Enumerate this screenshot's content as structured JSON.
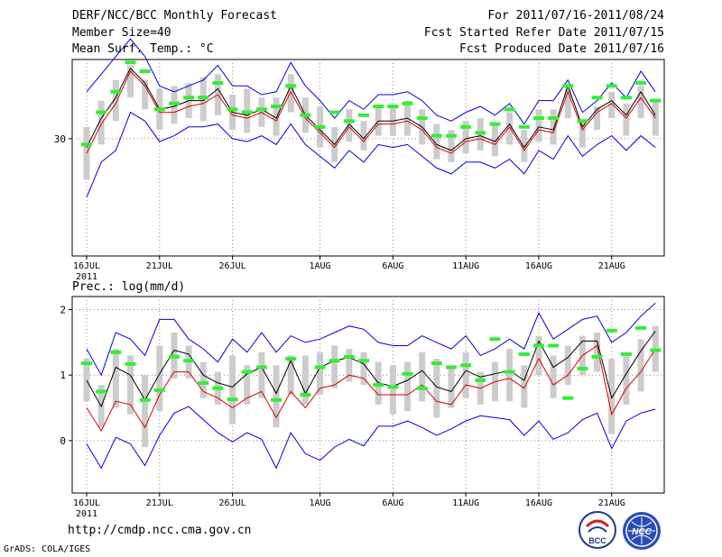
{
  "header": {
    "title": "DERF/NCC/BCC Monthly Forecast",
    "member_size": "Member Size=40",
    "variable_top": "Mean Surf. Temp.: °C",
    "period": "For 2011/07/16-2011/08/24",
    "started": "Fcst Started Refer Date 2011/07/15",
    "produced": "Fcst Produced Date 2011/07/16"
  },
  "footer": {
    "url": "http://cmdp.ncc.cma.gov.cn",
    "credit": "GrADS: COLA/IGES",
    "logo_bcc": "BCC",
    "logo_ncc": "NCC"
  },
  "x_ticks": [
    "16JUL",
    "21JUL",
    "26JUL",
    "1AUG",
    "6AUG",
    "11AUG",
    "16AUG",
    "21AUG"
  ],
  "x_year": "2011",
  "colors": {
    "box": "#cccccc",
    "obs": "#33ee33",
    "mean": "#000000",
    "median": "#dd0000",
    "envelope": "#0000dd"
  },
  "chart_data": [
    {
      "type": "line",
      "title": "Mean Surf. Temp.: °C",
      "x": [
        0,
        1,
        2,
        3,
        4,
        5,
        6,
        7,
        8,
        9,
        10,
        11,
        12,
        13,
        14,
        15,
        16,
        17,
        18,
        19,
        20,
        21,
        22,
        23,
        24,
        25,
        26,
        27,
        28,
        29,
        30,
        31,
        32,
        33,
        34,
        35,
        36,
        37,
        38,
        39
      ],
      "ylim": [
        26.0,
        32.7
      ],
      "yticks": [
        30
      ],
      "series": [
        {
          "name": "upper",
          "values": [
            31.6,
            32.2,
            32.8,
            33.4,
            32.8,
            31.8,
            31.6,
            31.8,
            32.0,
            32.5,
            31.8,
            31.8,
            31.5,
            31.6,
            32.6,
            31.8,
            31.3,
            30.7,
            31.3,
            31.0,
            31.5,
            31.5,
            31.6,
            31.3,
            30.8,
            30.6,
            30.9,
            31.1,
            30.8,
            31.2,
            30.5,
            31.3,
            31.3,
            32.0,
            30.9,
            31.3,
            31.9,
            31.4,
            32.3,
            31.6
          ]
        },
        {
          "name": "box_top",
          "values": [
            30.4,
            31.3,
            32.0,
            32.5,
            32.0,
            31.7,
            31.8,
            31.9,
            32.1,
            32.2,
            31.5,
            31.7,
            31.4,
            31.4,
            32.2,
            31.4,
            31.1,
            30.4,
            31.0,
            30.6,
            31.1,
            31.1,
            31.3,
            31.0,
            30.5,
            30.3,
            30.6,
            30.7,
            30.5,
            30.9,
            30.3,
            31.0,
            31.0,
            31.7,
            30.6,
            31.1,
            31.6,
            31.2,
            31.8,
            31.3
          ]
        },
        {
          "name": "mean",
          "values": [
            29.7,
            30.7,
            31.4,
            32.4,
            31.9,
            31.0,
            31.1,
            31.3,
            31.3,
            31.7,
            30.9,
            30.8,
            31.0,
            30.7,
            31.8,
            30.8,
            30.3,
            29.8,
            30.5,
            30.0,
            30.6,
            30.6,
            30.7,
            30.4,
            29.8,
            29.6,
            30.0,
            30.1,
            29.9,
            30.5,
            29.7,
            30.4,
            30.3,
            31.8,
            30.4,
            31.0,
            31.3,
            30.8,
            31.6,
            30.8
          ]
        },
        {
          "name": "median",
          "values": [
            29.5,
            30.5,
            31.2,
            32.3,
            31.8,
            30.9,
            30.9,
            31.1,
            31.2,
            31.5,
            30.8,
            30.7,
            30.9,
            30.6,
            31.6,
            30.7,
            30.2,
            29.7,
            30.4,
            29.9,
            30.5,
            30.5,
            30.6,
            30.3,
            29.7,
            29.5,
            29.9,
            30.0,
            29.8,
            30.4,
            29.6,
            30.3,
            30.2,
            31.6,
            30.3,
            30.9,
            31.2,
            30.7,
            31.4,
            30.7
          ]
        },
        {
          "name": "box_bottom",
          "values": [
            28.6,
            29.8,
            30.6,
            31.4,
            31.0,
            30.3,
            30.5,
            30.7,
            30.6,
            30.8,
            30.3,
            30.2,
            30.4,
            30.1,
            30.9,
            30.2,
            29.7,
            29.2,
            29.9,
            29.6,
            30.1,
            30.1,
            30.1,
            29.8,
            29.3,
            29.2,
            29.5,
            29.6,
            29.4,
            29.8,
            29.2,
            29.9,
            29.8,
            30.7,
            29.7,
            30.3,
            30.7,
            30.1,
            30.7,
            30.1
          ]
        },
        {
          "name": "lower",
          "values": [
            28.0,
            29.2,
            29.6,
            30.9,
            30.6,
            29.9,
            30.1,
            30.4,
            30.4,
            30.5,
            30.0,
            29.9,
            30.1,
            29.8,
            30.5,
            29.8,
            29.4,
            29.0,
            29.6,
            29.2,
            29.8,
            29.7,
            29.8,
            29.4,
            29.0,
            28.8,
            29.2,
            29.2,
            29.0,
            29.3,
            28.8,
            29.6,
            29.3,
            30.1,
            29.4,
            29.8,
            30.1,
            29.6,
            30.1,
            29.7
          ]
        },
        {
          "name": "observed",
          "values": [
            29.8,
            30.9,
            31.6,
            32.6,
            32.3,
            31.0,
            31.2,
            31.4,
            31.4,
            31.9,
            31.0,
            30.9,
            31.0,
            31.1,
            31.8,
            30.8,
            30.4,
            30.9,
            30.6,
            30.8,
            31.1,
            31.1,
            31.2,
            30.7,
            30.1,
            30.1,
            30.4,
            30.2,
            30.5,
            31.0,
            30.4,
            30.7,
            30.7,
            31.8,
            30.6,
            31.4,
            31.8,
            31.4,
            31.9,
            31.3
          ]
        }
      ]
    },
    {
      "type": "line",
      "title": "Prec.: log(mm/d)",
      "x": [
        0,
        1,
        2,
        3,
        4,
        5,
        6,
        7,
        8,
        9,
        10,
        11,
        12,
        13,
        14,
        15,
        16,
        17,
        18,
        19,
        20,
        21,
        22,
        23,
        24,
        25,
        26,
        27,
        28,
        29,
        30,
        31,
        32,
        33,
        34,
        35,
        36,
        37,
        38,
        39
      ],
      "ylim": [
        -0.8,
        2.2
      ],
      "yticks": [
        0,
        1,
        2
      ],
      "series": [
        {
          "name": "upper",
          "values": [
            1.4,
            1.0,
            1.65,
            1.55,
            1.3,
            1.85,
            1.85,
            1.55,
            1.4,
            1.2,
            1.55,
            1.35,
            1.65,
            1.35,
            1.6,
            1.5,
            1.55,
            1.65,
            1.75,
            1.7,
            1.5,
            1.45,
            1.45,
            1.6,
            1.5,
            1.4,
            1.6,
            1.3,
            1.4,
            1.55,
            1.4,
            1.95,
            1.55,
            1.7,
            1.85,
            1.9,
            1.5,
            1.65,
            1.9,
            2.1
          ]
        },
        {
          "name": "box_top",
          "values": [
            1.25,
            0.85,
            1.4,
            1.3,
            1.0,
            1.45,
            1.65,
            1.45,
            1.2,
            1.05,
            1.3,
            1.15,
            1.35,
            1.15,
            1.3,
            1.3,
            1.35,
            1.45,
            1.4,
            1.35,
            1.2,
            1.15,
            1.2,
            1.35,
            1.25,
            1.15,
            1.35,
            1.05,
            1.2,
            1.4,
            1.15,
            1.6,
            1.3,
            1.45,
            1.6,
            1.65,
            1.25,
            1.3,
            1.55,
            1.75
          ]
        },
        {
          "name": "mean",
          "values": [
            0.92,
            0.52,
            1.12,
            1.0,
            0.62,
            1.02,
            1.38,
            1.32,
            1.0,
            0.88,
            0.82,
            1.02,
            1.12,
            0.72,
            1.22,
            0.72,
            1.12,
            1.22,
            1.27,
            1.17,
            0.88,
            0.83,
            0.92,
            1.07,
            0.82,
            0.75,
            1.07,
            0.97,
            1.02,
            1.07,
            0.92,
            1.52,
            1.12,
            1.27,
            1.52,
            1.52,
            0.65,
            1.02,
            1.37,
            1.67
          ]
        },
        {
          "name": "median",
          "values": [
            0.5,
            0.15,
            0.6,
            0.55,
            0.2,
            0.7,
            1.05,
            1.05,
            0.75,
            0.65,
            0.5,
            0.65,
            0.75,
            0.35,
            0.75,
            0.5,
            0.8,
            0.85,
            1.0,
            0.95,
            0.7,
            0.7,
            0.7,
            0.85,
            0.6,
            0.55,
            0.85,
            0.8,
            0.9,
            0.95,
            0.8,
            1.25,
            0.85,
            1.0,
            1.3,
            1.45,
            0.4,
            0.8,
            1.05,
            1.4
          ]
        },
        {
          "name": "box_bottom",
          "values": [
            0.6,
            0.2,
            0.5,
            0.4,
            -0.1,
            0.45,
            0.95,
            0.95,
            0.65,
            0.55,
            0.25,
            0.55,
            0.65,
            0.2,
            0.7,
            0.55,
            0.7,
            0.8,
            0.9,
            0.85,
            0.55,
            0.4,
            0.45,
            0.6,
            0.35,
            0.5,
            0.65,
            0.55,
            0.6,
            0.6,
            0.5,
            1.0,
            0.65,
            0.85,
            1.0,
            1.05,
            0.1,
            0.55,
            0.75,
            1.05
          ]
        },
        {
          "name": "lower",
          "values": [
            -0.05,
            -0.42,
            0.05,
            -0.05,
            -0.38,
            0.08,
            0.42,
            0.52,
            0.32,
            0.12,
            -0.02,
            0.12,
            0.02,
            -0.42,
            0.12,
            -0.2,
            -0.3,
            -0.1,
            0.02,
            -0.08,
            0.22,
            0.22,
            0.3,
            0.2,
            0.08,
            0.18,
            0.3,
            0.38,
            0.35,
            0.32,
            0.08,
            0.3,
            0.02,
            0.12,
            0.32,
            0.42,
            -0.12,
            0.3,
            0.42,
            0.48
          ]
        },
        {
          "name": "observed",
          "values": [
            1.18,
            0.75,
            1.35,
            1.17,
            0.62,
            0.77,
            1.28,
            1.22,
            0.88,
            0.8,
            0.63,
            1.05,
            1.12,
            0.62,
            1.25,
            0.7,
            1.12,
            1.22,
            1.28,
            1.22,
            0.85,
            0.82,
            1.02,
            0.8,
            1.18,
            1.12,
            1.15,
            0.92,
            1.55,
            1.05,
            1.32,
            1.45,
            1.45,
            0.65,
            1.1,
            1.28,
            1.68,
            1.32,
            1.72,
            1.38
          ]
        }
      ]
    }
  ]
}
